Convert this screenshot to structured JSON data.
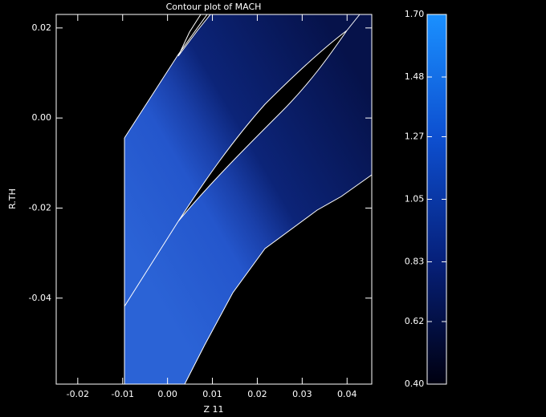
{
  "chart_data": {
    "type": "contour",
    "title": "Contour plot of MACH",
    "x_label": "Z 11",
    "y_label": "R.TH",
    "xlim": [
      -0.0248,
      0.0455
    ],
    "xticks": [
      -0.02,
      -0.01,
      {
        "value": 0,
        "label": "0.00"
      },
      0.01,
      0.02,
      0.03,
      0.04
    ],
    "ylim": [
      -0.0591,
      0.023
    ],
    "yticks": [
      0.02,
      {
        "value": 0,
        "label": "0.00"
      },
      -0.02,
      -0.04
    ],
    "colorbar": {
      "lim": [
        0.4,
        1.7
      ],
      "ticks": [
        {
          "value": 0.4,
          "label": "0.40"
        },
        0.62,
        0.83,
        1.05,
        1.27,
        1.48,
        {
          "value": 1.7,
          "label": "1.70"
        }
      ],
      "colors": [
        "#000010",
        "#06207a",
        "#0d4fd0",
        "#1a90ff"
      ]
    }
  }
}
